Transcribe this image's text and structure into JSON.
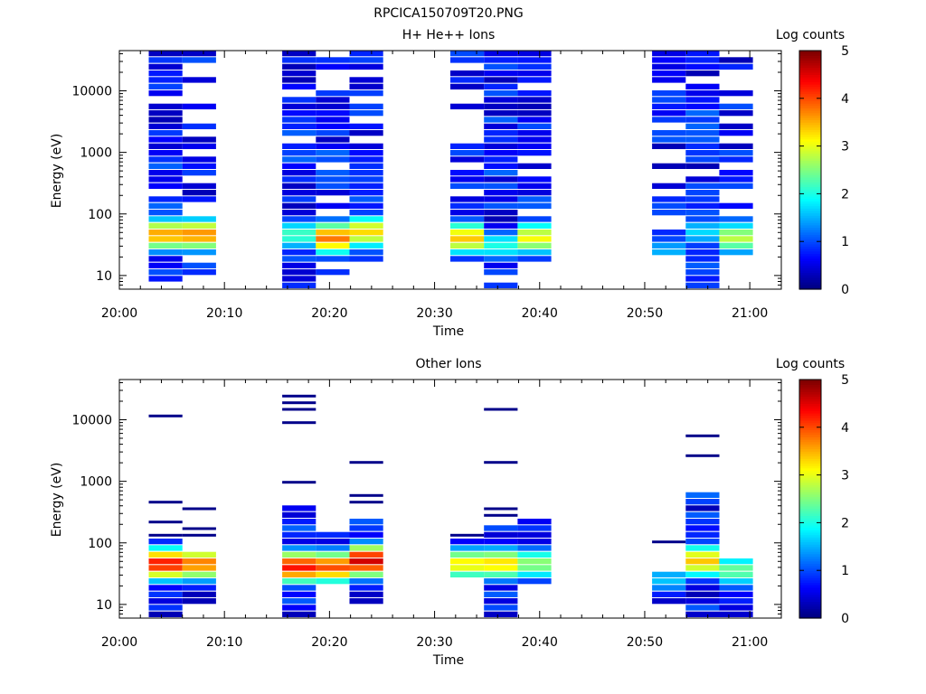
{
  "figure_title": "RPCICA150709T20.PNG",
  "chart_data": [
    {
      "type": "heatmap",
      "title": "H+ He++ Ions",
      "xlabel": "Time",
      "ylabel": "Energy (eV)",
      "x_ticks": [
        "20:00",
        "20:10",
        "20:20",
        "20:30",
        "20:40",
        "20:50",
        "21:00"
      ],
      "x_range_min": [
        0,
        63
      ],
      "y_ticks": [
        "10",
        "100",
        "1000",
        "10000"
      ],
      "y_range_eV": [
        6,
        45000
      ],
      "y_scale": "log",
      "colorbar": {
        "label": "Log counts",
        "ticks": [
          "0",
          "1",
          "2",
          "3",
          "4",
          "5"
        ],
        "range": [
          0,
          5
        ],
        "colormap": "jet"
      },
      "columns": [
        {
          "t_start_min": 2.8,
          "t_end_min": 6.0,
          "e_min": 6,
          "e_max": 42000,
          "peak_log": 3.6,
          "peak_e": 45,
          "line_density": 0.85
        },
        {
          "t_start_min": 6.0,
          "t_end_min": 9.2,
          "e_min": 9,
          "e_max": 42000,
          "peak_log": 3.7,
          "peak_e": 45,
          "line_density": 0.55
        },
        {
          "t_start_min": 15.5,
          "t_end_min": 18.7,
          "e_min": 6,
          "e_max": 42000,
          "peak_log": 2.2,
          "peak_e": 45,
          "line_density": 0.9
        },
        {
          "t_start_min": 18.7,
          "t_end_min": 21.9,
          "e_min": 9,
          "e_max": 42000,
          "peak_log": 3.8,
          "peak_e": 40,
          "line_density": 0.75
        },
        {
          "t_start_min": 21.9,
          "t_end_min": 25.1,
          "e_min": 15,
          "e_max": 42000,
          "peak_log": 3.3,
          "peak_e": 50,
          "line_density": 0.9
        },
        {
          "t_start_min": 31.5,
          "t_end_min": 34.7,
          "e_min": 15,
          "e_max": 42000,
          "peak_log": 3.4,
          "peak_e": 40,
          "line_density": 0.55
        },
        {
          "t_start_min": 34.7,
          "t_end_min": 37.9,
          "e_min": 6,
          "e_max": 42000,
          "peak_log": 2.0,
          "peak_e": 30,
          "line_density": 0.9
        },
        {
          "t_start_min": 37.9,
          "t_end_min": 41.1,
          "e_min": 15,
          "e_max": 42000,
          "peak_log": 3.1,
          "peak_e": 40,
          "line_density": 0.6
        },
        {
          "t_start_min": 50.7,
          "t_end_min": 53.9,
          "e_min": 20,
          "e_max": 42000,
          "peak_log": 1.5,
          "peak_e": 25,
          "line_density": 0.5
        },
        {
          "t_start_min": 53.9,
          "t_end_min": 57.1,
          "e_min": 6,
          "e_max": 42000,
          "peak_log": 1.7,
          "peak_e": 50,
          "line_density": 0.9
        },
        {
          "t_start_min": 57.1,
          "t_end_min": 60.3,
          "e_min": 20,
          "e_max": 42000,
          "peak_log": 2.8,
          "peak_e": 40,
          "line_density": 0.6
        }
      ]
    },
    {
      "type": "heatmap",
      "title": "Other Ions",
      "xlabel": "Time",
      "ylabel": "Energy (eV)",
      "x_ticks": [
        "20:00",
        "20:10",
        "20:20",
        "20:30",
        "20:40",
        "20:50",
        "21:00"
      ],
      "x_range_min": [
        0,
        63
      ],
      "y_ticks": [
        "10",
        "100",
        "1000",
        "10000"
      ],
      "y_range_eV": [
        6,
        45000
      ],
      "y_scale": "log",
      "colorbar": {
        "label": "Log counts",
        "ticks": [
          "0",
          "1",
          "2",
          "3",
          "4",
          "5"
        ],
        "range": [
          0,
          5
        ],
        "colormap": "jet"
      },
      "columns": [
        {
          "t_start_min": 2.8,
          "t_end_min": 6.0,
          "e_min": 6,
          "e_max": 120,
          "peak_log": 4.3,
          "peak_e": 45,
          "isolated_lines_eV": [
            11000,
            440,
            220,
            150
          ]
        },
        {
          "t_start_min": 6.0,
          "t_end_min": 9.2,
          "e_min": 10,
          "e_max": 70,
          "peak_log": 3.8,
          "peak_e": 45,
          "isolated_lines_eV": [
            400,
            190,
            145
          ]
        },
        {
          "t_start_min": 15.5,
          "t_end_min": 18.7,
          "e_min": 6,
          "e_max": 400,
          "peak_log": 4.3,
          "peak_e": 40,
          "isolated_lines_eV": [
            24000,
            21000,
            14000,
            10000,
            1000
          ]
        },
        {
          "t_start_min": 18.7,
          "t_end_min": 21.9,
          "e_min": 22,
          "e_max": 170,
          "peak_log": 4.0,
          "peak_e": 40,
          "isolated_lines_eV": []
        },
        {
          "t_start_min": 21.9,
          "t_end_min": 25.1,
          "e_min": 10,
          "e_max": 270,
          "peak_log": 4.6,
          "peak_e": 50,
          "isolated_lines_eV": [
            1800,
            560,
            410
          ]
        },
        {
          "t_start_min": 31.5,
          "t_end_min": 34.7,
          "e_min": 26,
          "e_max": 110,
          "peak_log": 3.2,
          "peak_e": 45,
          "isolated_lines_eV": [
            130
          ]
        },
        {
          "t_start_min": 34.7,
          "t_end_min": 37.9,
          "e_min": 6,
          "e_max": 190,
          "peak_log": 3.3,
          "peak_e": 45,
          "isolated_lines_eV": [
            14000,
            2000,
            320,
            270
          ]
        },
        {
          "t_start_min": 37.9,
          "t_end_min": 41.1,
          "e_min": 20,
          "e_max": 230,
          "peak_log": 2.6,
          "peak_e": 45,
          "isolated_lines_eV": []
        },
        {
          "t_start_min": 50.7,
          "t_end_min": 53.9,
          "e_min": 10,
          "e_max": 35,
          "peak_log": 1.6,
          "peak_e": 25,
          "isolated_lines_eV": [
            100
          ]
        },
        {
          "t_start_min": 53.9,
          "t_end_min": 57.1,
          "e_min": 6,
          "e_max": 700,
          "peak_log": 3.4,
          "peak_e": 50,
          "isolated_lines_eV": [
            6000,
            2800,
            440,
            400
          ]
        },
        {
          "t_start_min": 57.1,
          "t_end_min": 60.3,
          "e_min": 6,
          "e_max": 50,
          "peak_log": 2.4,
          "peak_e": 35,
          "isolated_lines_eV": []
        }
      ]
    }
  ]
}
